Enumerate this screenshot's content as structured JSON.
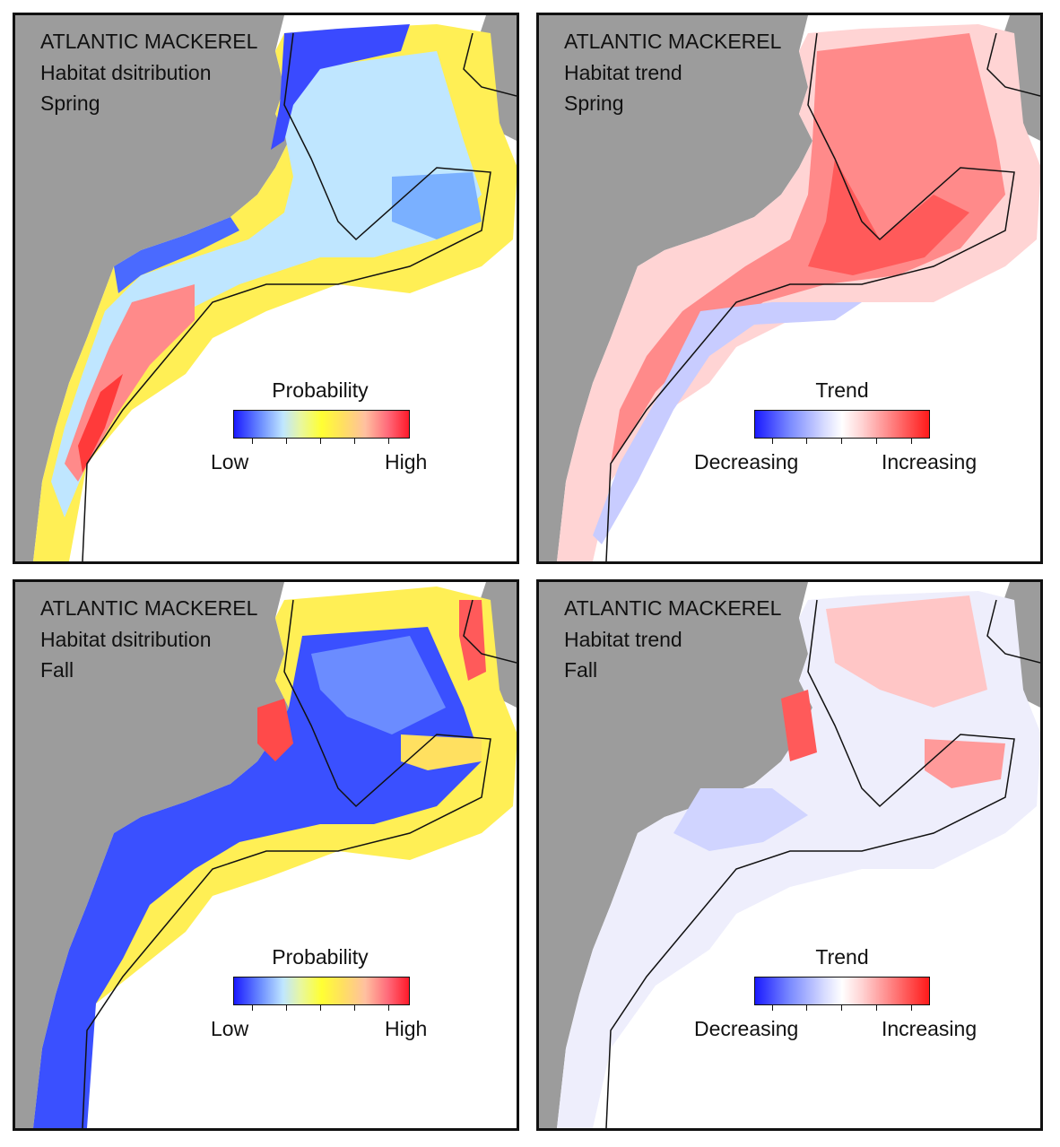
{
  "panels": [
    {
      "title": "ATLANTIC MACKEREL",
      "subtitle": "Habitat dsitribution",
      "season": "Spring",
      "legend": {
        "title": "Probability",
        "low": "Low",
        "high": "High"
      }
    },
    {
      "title": "ATLANTIC MACKEREL",
      "subtitle": "Habitat trend",
      "season": "Spring",
      "legend": {
        "title": "Trend",
        "low": "Decreasing",
        "high": "Increasing"
      }
    },
    {
      "title": "ATLANTIC MACKEREL",
      "subtitle": "Habitat dsitribution",
      "season": "Fall",
      "legend": {
        "title": "Probability",
        "low": "Low",
        "high": "High"
      }
    },
    {
      "title": "ATLANTIC MACKEREL",
      "subtitle": "Habitat trend",
      "season": "Fall",
      "legend": {
        "title": "Trend",
        "low": "Decreasing",
        "high": "Increasing"
      }
    }
  ],
  "colors": {
    "land": "#9c9c9c",
    "ocean": "#ffffff",
    "probability_scale": [
      "#1a1aff",
      "#bfe6ff",
      "#ffff33",
      "#ffc0a0",
      "#ff1a2a"
    ],
    "trend_scale": [
      "#1a1aff",
      "#ffffff",
      "#ff1a1a"
    ]
  }
}
